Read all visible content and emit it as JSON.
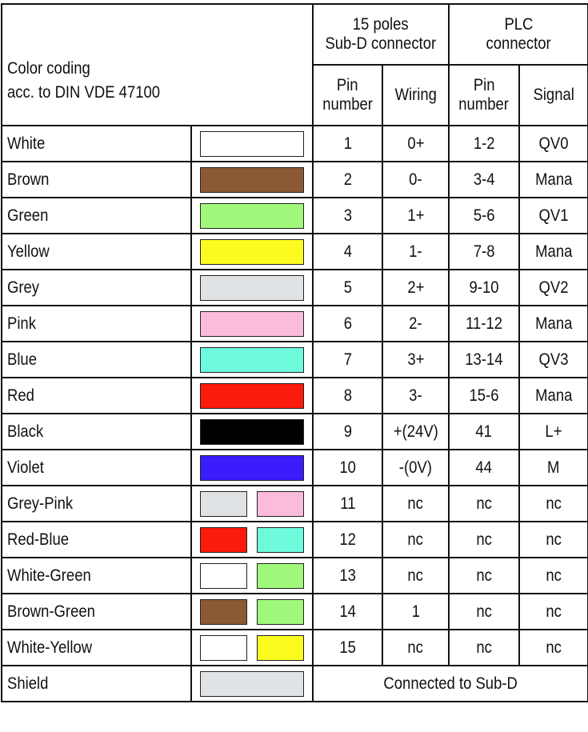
{
  "header": {
    "color_coding_line1": "Color coding",
    "color_coding_line2": "acc. to DIN VDE 47100",
    "subd_group_line1": "15 poles",
    "subd_group_line2": "Sub-D connector",
    "plc_group_line1": "PLC",
    "plc_group_line2": "connector",
    "subd_pin_line1": "Pin",
    "subd_pin_line2": "number",
    "subd_wiring": "Wiring",
    "plc_pin_line1": "Pin",
    "plc_pin_line2": "number",
    "plc_signal": "Signal"
  },
  "colors": {
    "White": "#ffffff",
    "Brown": "#8b5a34",
    "Green": "#a0f87a",
    "Yellow": "#fbfb20",
    "Grey": "#e0e3e5",
    "Pink": "#fbbcdc",
    "Blue": "#6dfbdc",
    "Red": "#fb1b0b",
    "Black": "#000000",
    "Violet": "#3a1bfb"
  },
  "rows": [
    {
      "name": "White",
      "swatches": [
        "White"
      ],
      "pin": "1",
      "wiring": "0+",
      "plc_pin": "1-2",
      "signal": "QV0"
    },
    {
      "name": "Brown",
      "swatches": [
        "Brown"
      ],
      "pin": "2",
      "wiring": "0-",
      "plc_pin": "3-4",
      "signal": "Mana"
    },
    {
      "name": "Green",
      "swatches": [
        "Green"
      ],
      "pin": "3",
      "wiring": "1+",
      "plc_pin": "5-6",
      "signal": "QV1"
    },
    {
      "name": "Yellow",
      "swatches": [
        "Yellow"
      ],
      "pin": "4",
      "wiring": "1-",
      "plc_pin": "7-8",
      "signal": "Mana"
    },
    {
      "name": "Grey",
      "swatches": [
        "Grey"
      ],
      "pin": "5",
      "wiring": "2+",
      "plc_pin": "9-10",
      "signal": "QV2"
    },
    {
      "name": "Pink",
      "swatches": [
        "Pink"
      ],
      "pin": "6",
      "wiring": "2-",
      "plc_pin": "11-12",
      "signal": "Mana"
    },
    {
      "name": "Blue",
      "swatches": [
        "Blue"
      ],
      "pin": "7",
      "wiring": "3+",
      "plc_pin": "13-14",
      "signal": "QV3"
    },
    {
      "name": "Red",
      "swatches": [
        "Red"
      ],
      "pin": "8",
      "wiring": "3-",
      "plc_pin": "15-6",
      "signal": "Mana"
    },
    {
      "name": "Black",
      "swatches": [
        "Black"
      ],
      "pin": "9",
      "wiring": "+(24V)",
      "plc_pin": "41",
      "signal": "L+"
    },
    {
      "name": "Violet",
      "swatches": [
        "Violet"
      ],
      "pin": "10",
      "wiring": "-(0V)",
      "plc_pin": "44",
      "signal": "M"
    },
    {
      "name": "Grey-Pink",
      "swatches": [
        "Grey",
        "Pink"
      ],
      "pin": "11",
      "wiring": "nc",
      "plc_pin": "nc",
      "signal": "nc"
    },
    {
      "name": "Red-Blue",
      "swatches": [
        "Red",
        "Blue"
      ],
      "pin": "12",
      "wiring": "nc",
      "plc_pin": "nc",
      "signal": "nc"
    },
    {
      "name": "White-Green",
      "swatches": [
        "White",
        "Green"
      ],
      "pin": "13",
      "wiring": "nc",
      "plc_pin": "nc",
      "signal": "nc"
    },
    {
      "name": "Brown-Green",
      "swatches": [
        "Brown",
        "Green"
      ],
      "pin": "14",
      "wiring": "1",
      "plc_pin": "nc",
      "signal": "nc"
    },
    {
      "name": "White-Yellow",
      "swatches": [
        "White",
        "Yellow"
      ],
      "pin": "15",
      "wiring": "nc",
      "plc_pin": "nc",
      "signal": "nc"
    }
  ],
  "shield": {
    "name": "Shield",
    "swatch": "Grey",
    "note": "Connected to Sub-D"
  }
}
